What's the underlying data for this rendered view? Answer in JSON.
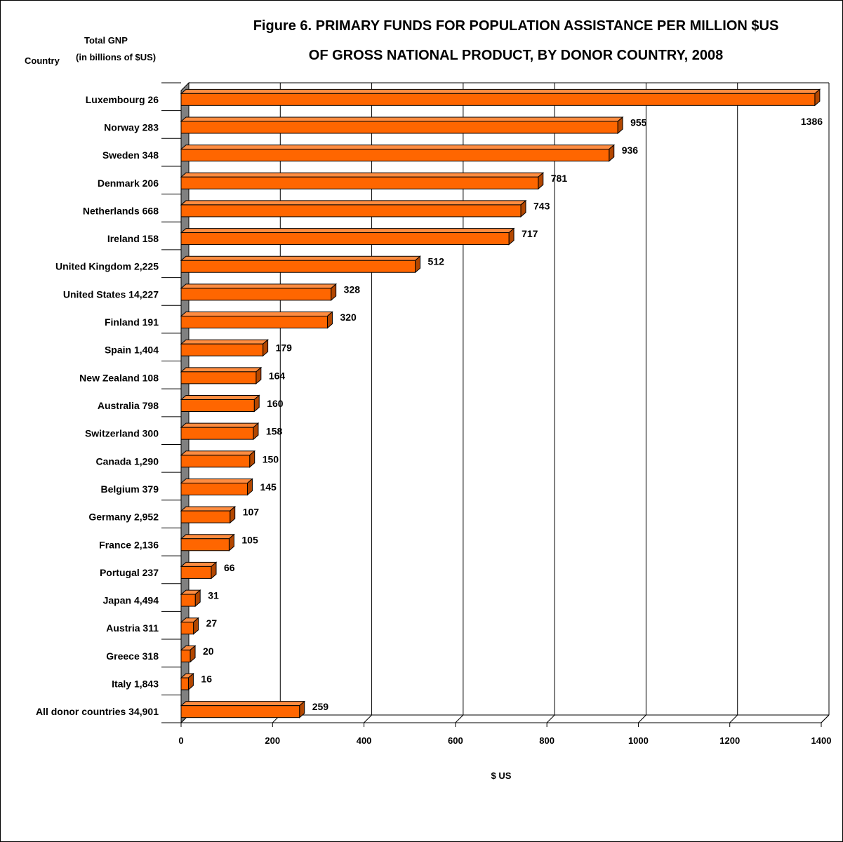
{
  "header": {
    "title_line_1": "Figure 6. PRIMARY FUNDS FOR POPULATION ASSISTANCE PER MILLION $US",
    "title_line_2": "OF GROSS NATIONAL PRODUCT, BY DONOR COUNTRY, 2008",
    "col_country": "Country",
    "col_gnp_line_1": "Total GNP",
    "col_gnp_line_2": "(in billions of $US)"
  },
  "colors": {
    "bar_front": "#ff6600",
    "bar_top": "#ff8c40",
    "bar_side": "#b34700",
    "wall": "#808080",
    "grid": "#000000"
  },
  "chart_data": {
    "type": "bar",
    "orientation": "horizontal",
    "style": "3d",
    "title": "Figure 6. PRIMARY FUNDS FOR POPULATION ASSISTANCE PER MILLION $US OF GROSS NATIONAL PRODUCT, BY DONOR COUNTRY, 2008",
    "xlabel": "$ US",
    "ylabel": "",
    "xlim": [
      0,
      1400
    ],
    "xticks": [
      0,
      200,
      400,
      600,
      800,
      1000,
      1200,
      1400
    ],
    "grid": true,
    "categories": [
      "Luxembourg 26",
      "Norway 283",
      "Sweden 348",
      "Denmark 206",
      "Netherlands 668",
      "Ireland 158",
      "United Kingdom 2,225",
      "United States 14,227",
      "Finland 191",
      "Spain 1,404",
      "New Zealand 108",
      "Australia 798",
      "Switzerland 300",
      "Canada 1,290",
      "Belgium 379",
      "Germany 2,952",
      "France 2,136",
      "Portugal 237",
      "Japan 4,494",
      "Austria 311",
      "Greece 318",
      "Italy 1,843",
      "All donor countries 34,901"
    ],
    "values": [
      1386,
      955,
      936,
      781,
      743,
      717,
      512,
      328,
      320,
      179,
      164,
      160,
      158,
      150,
      145,
      107,
      105,
      66,
      31,
      27,
      20,
      16,
      259
    ],
    "value_labels": [
      "1386",
      "955",
      "936",
      "781",
      "743",
      "717",
      "512",
      "328",
      "320",
      "179",
      "164",
      "160",
      "158",
      "150",
      "145",
      "107",
      "105",
      "66",
      "31",
      "27",
      "20",
      "16",
      "259"
    ]
  }
}
